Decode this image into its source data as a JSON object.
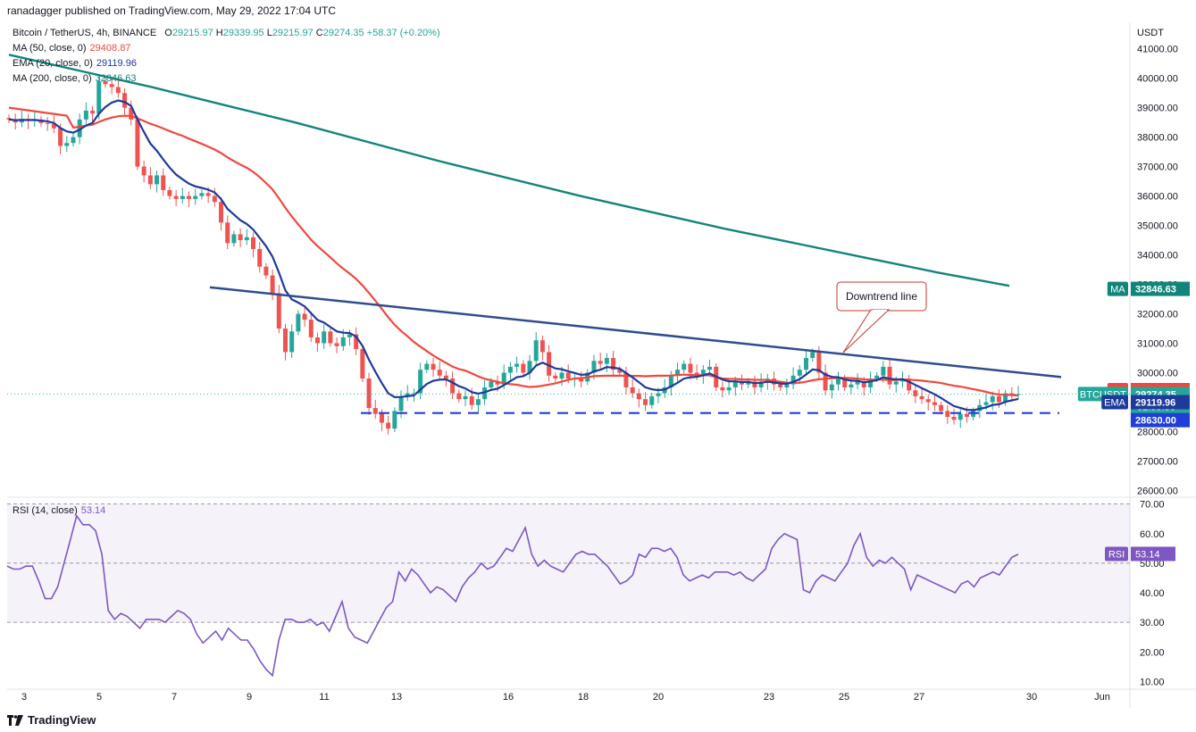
{
  "header": {
    "publisher": "ranadagger published on TradingView.com, May 29, 2022 17:04 UTC",
    "symbol_line": {
      "name": "Bitcoin / TetherUS, 4h, BINANCE",
      "open_label": "O",
      "open": "29215.97",
      "high_label": "H",
      "high": "29339.95",
      "low_label": "L",
      "low": "29215.97",
      "close_label": "C",
      "close": "29274.35",
      "change": "+58.37 (+0.20%)"
    },
    "indicators": [
      {
        "label": "MA (50, close, 0)",
        "value": "29408.87",
        "color": "#f0483e"
      },
      {
        "label": "EMA (20, close, 0)",
        "value": "29119.96",
        "color": "#1e3a9a"
      },
      {
        "label": "MA (200, close, 0)",
        "value": "32846.63",
        "color": "#12857a"
      }
    ],
    "rsi_label": "RSI (14, close)",
    "rsi_value": "53.14"
  },
  "footer": {
    "logo_text": "TradingView"
  },
  "colors": {
    "up": "#26a69a",
    "down": "#ef5350",
    "ema": "#1e3a9a",
    "ma50": "#f0483e",
    "ma200": "#12857a",
    "trendline": "#2f4d8e",
    "support": "#1e3fd8",
    "rsi": "#7e57c2"
  },
  "chart_data": {
    "type": "candlestick",
    "price_axis": {
      "unit": "USDT",
      "range": [
        25800,
        41900
      ],
      "ticks": [
        "26000.00",
        "27000.00",
        "28000.00",
        "29000.00",
        "30000.00",
        "31000.00",
        "32000.00",
        "33000.00",
        "34000.00",
        "35000.00",
        "36000.00",
        "37000.00",
        "38000.00",
        "39000.00",
        "40000.00",
        "41000.00"
      ]
    },
    "rsi_axis": {
      "range": [
        8,
        72
      ],
      "ticks": [
        "10.00",
        "20.00",
        "30.00",
        "40.00",
        "50.00",
        "60.00",
        "70.00"
      ],
      "band": [
        30,
        70
      ]
    },
    "time_axis": {
      "ticks": [
        "3",
        "5",
        "7",
        "9",
        "11",
        "13",
        "16",
        "18",
        "20",
        "23",
        "25",
        "27",
        "30",
        "Jun"
      ]
    },
    "price_labels": [
      {
        "tag": "MA",
        "value": "32846.63"
      },
      {
        "tag": "MA",
        "value": "29408.87"
      },
      {
        "tag": "BTCUSDT",
        "value": "29274.35",
        "sub": "02:55:36"
      },
      {
        "tag": "EMA",
        "value": "29119.96"
      },
      {
        "tag": "",
        "value": "28630.00"
      }
    ],
    "annotation": "Downtrend line",
    "support_level": 28630,
    "closes": [
      38600,
      38500,
      38620,
      38550,
      38600,
      38480,
      38450,
      38300,
      37700,
      37800,
      38000,
      38600,
      38900,
      38800,
      39900,
      39800,
      39700,
      39500,
      39000,
      38600,
      37000,
      36700,
      36400,
      36700,
      36200,
      36000,
      35900,
      36000,
      35900,
      36000,
      36100,
      36000,
      35800,
      35100,
      34400,
      34700,
      34500,
      34600,
      34200,
      33600,
      33300,
      32700,
      31500,
      30700,
      31400,
      32000,
      31800,
      31200,
      31000,
      31400,
      31000,
      30900,
      31200,
      31300,
      30800,
      29800,
      28800,
      28600,
      28300,
      28100,
      28700,
      29200,
      29300,
      29300,
      30100,
      30300,
      30100,
      29900,
      29800,
      29300,
      29100,
      29200,
      28900,
      29100,
      29500,
      29700,
      29600,
      30000,
      30200,
      30300,
      30000,
      30400,
      31100,
      30700,
      29900,
      29800,
      30000,
      29800,
      29800,
      29700,
      30000,
      30400,
      30300,
      30500,
      30100,
      30000,
      29500,
      29300,
      29100,
      28900,
      29200,
      29300,
      29500,
      29900,
      30100,
      30300,
      30000,
      29900,
      30100,
      30200,
      29500,
      29400,
      29500,
      29700,
      29600,
      29700,
      29500,
      29700,
      29800,
      29600,
      29500,
      29600,
      29900,
      30100,
      30500,
      30700,
      30000,
      29400,
      29600,
      29800,
      29500,
      29600,
      29700,
      29500,
      29800,
      29900,
      30200,
      29600,
      29700,
      29800,
      29400,
      29200,
      29100,
      29000,
      28900,
      28700,
      28500,
      28400,
      28600,
      28500,
      28700,
      28900,
      29000,
      29200,
      29000,
      29300,
      29250,
      29274
    ],
    "ma200": [
      [
        0.0,
        40800
      ],
      [
        0.1,
        39700
      ],
      [
        0.2,
        38500
      ],
      [
        0.3,
        37200
      ],
      [
        0.4,
        36000
      ],
      [
        0.5,
        34900
      ],
      [
        0.6,
        33900
      ],
      [
        0.65,
        33400
      ],
      [
        0.7,
        32950
      ]
    ],
    "series": [
      {
        "name": "MA (50, close, 0)",
        "values_key": "ma50"
      },
      {
        "name": "EMA (20, close, 0)",
        "values_key": "ema20"
      },
      {
        "name": "MA (200, close, 0)",
        "values_key": "ma200"
      }
    ],
    "rsi": [
      49,
      48,
      48,
      49,
      49,
      44,
      38,
      38,
      42,
      50,
      58,
      66,
      63,
      63,
      61,
      53,
      34,
      31,
      33,
      32,
      30,
      28,
      31,
      31,
      31,
      30,
      32,
      34,
      33,
      31,
      26,
      23,
      25,
      27,
      24,
      28,
      26,
      24,
      24,
      21,
      17,
      14,
      12,
      24,
      31,
      31,
      30,
      30,
      31,
      29,
      30,
      27,
      32,
      37,
      28,
      25,
      24,
      23,
      27,
      31,
      35,
      37,
      47,
      44,
      48,
      46,
      43,
      40,
      42,
      41,
      39,
      37,
      42,
      45,
      47,
      50,
      48,
      49,
      52,
      55,
      54,
      58,
      62,
      53,
      49,
      51,
      49,
      48,
      47,
      50,
      53,
      54,
      53,
      53,
      51,
      49,
      46,
      43,
      44,
      46,
      53,
      52,
      55,
      55,
      54,
      55,
      52,
      46,
      44,
      45,
      46,
      45,
      47,
      47,
      47,
      46,
      47,
      45,
      44,
      46,
      48,
      55,
      58,
      60,
      59,
      58,
      41,
      40,
      44,
      46,
      45,
      44,
      47,
      50,
      56,
      60,
      52,
      49,
      51,
      50,
      52,
      50,
      48,
      41,
      46,
      45,
      44,
      43,
      42,
      41,
      40,
      43,
      44,
      42,
      45,
      46,
      47,
      46,
      49,
      52,
      53
    ]
  }
}
